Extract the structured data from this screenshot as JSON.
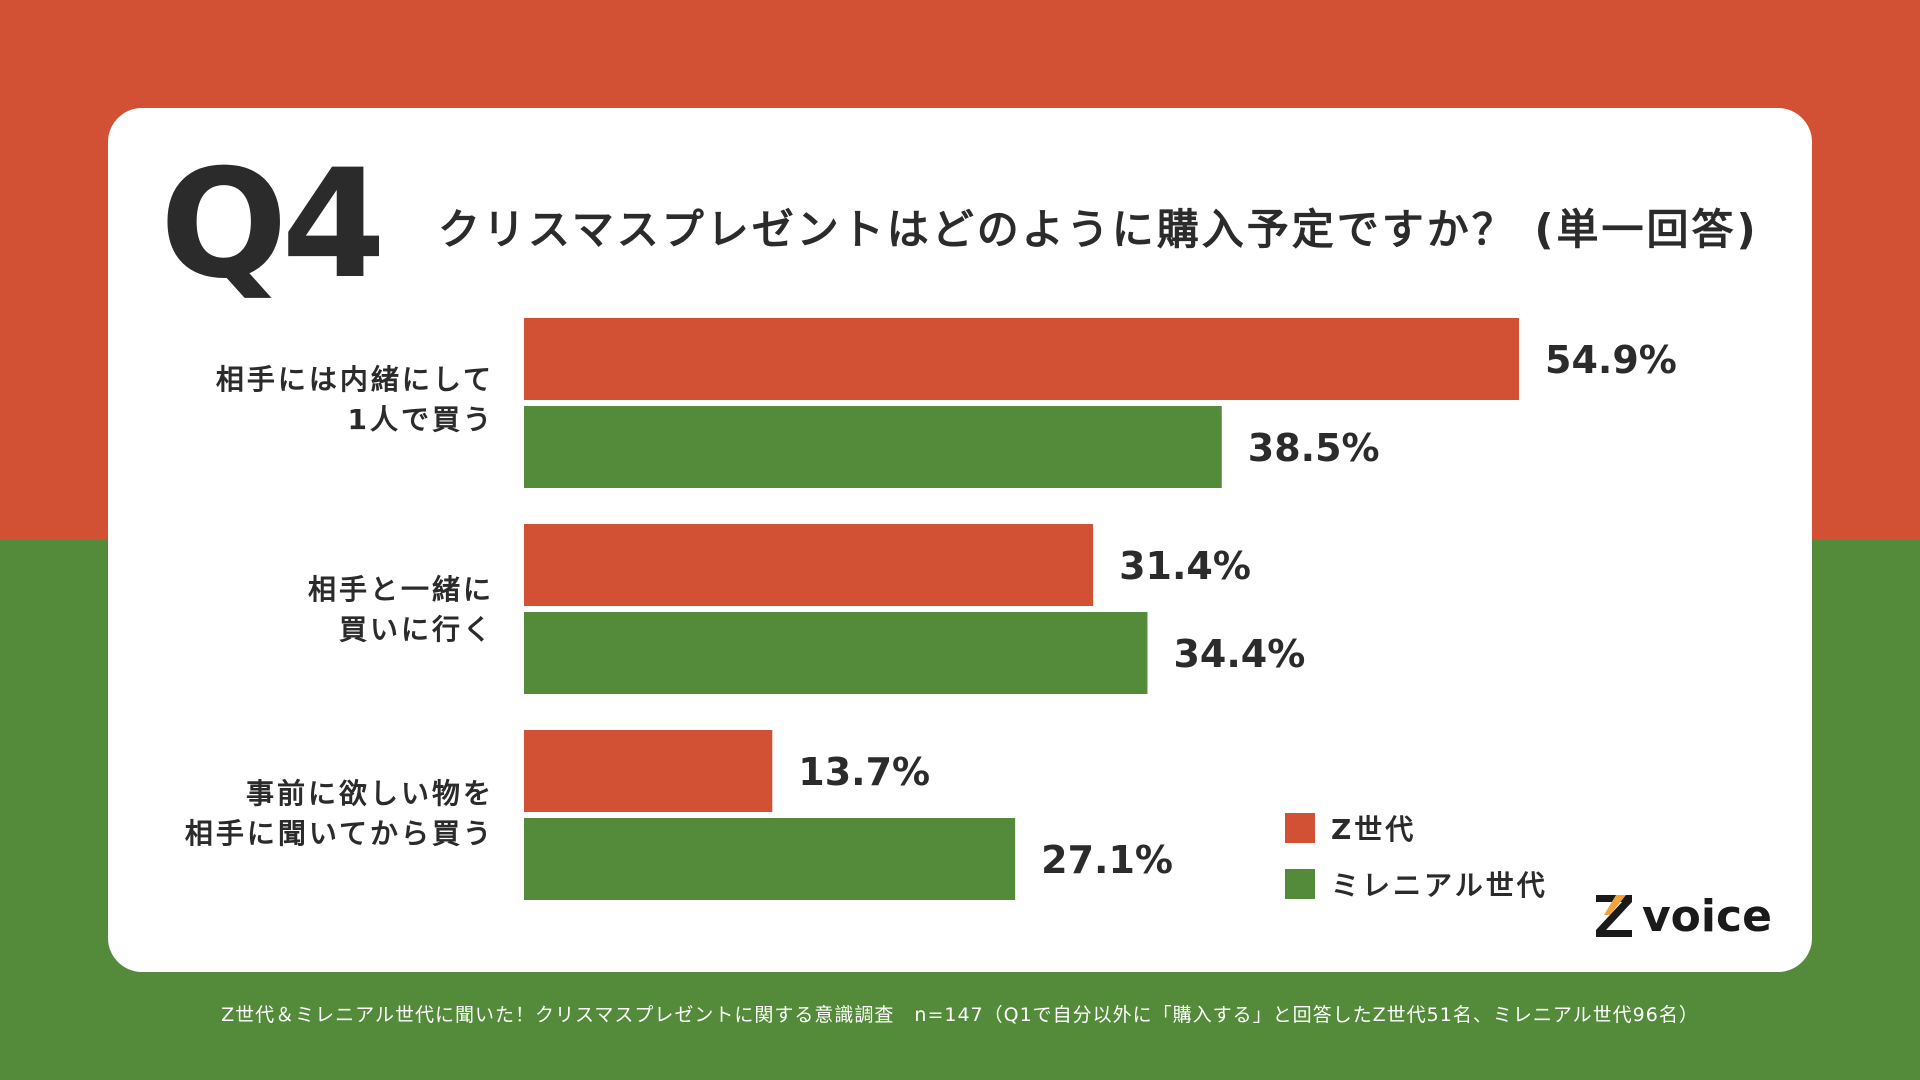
{
  "colors": {
    "gen_z": "#D25034",
    "millennial": "#548B3A",
    "text": "#2b2b2b"
  },
  "header": {
    "badge": "Q4",
    "question": "クリスマスプレゼントはどのように購入予定ですか？ (単一回答)"
  },
  "chart_data": {
    "type": "bar",
    "orientation": "horizontal",
    "categories": [
      "相手には内緒にして\n1人で買う",
      "相手と一緒に\n買いに行く",
      "事前に欲しい物を\n相手に聞いてから買う"
    ],
    "series": [
      {
        "name": "Z世代",
        "values": [
          54.9,
          31.4,
          13.7
        ],
        "labels": [
          "54.9%",
          "31.4%",
          "13.7%"
        ]
      },
      {
        "name": "ミレニアル世代",
        "values": [
          38.5,
          34.4,
          27.1
        ],
        "labels": [
          "38.5%",
          "34.4%",
          "27.1%"
        ]
      }
    ],
    "xlim": [
      0,
      60
    ],
    "unit": "%",
    "legend": "bottom-right"
  },
  "logo": {
    "text": "voice",
    "mark": "Z"
  },
  "footer": {
    "text": "Z世代＆ミレニアル世代に聞いた！クリスマスプレゼントに関する意識調査　n=147（Q1で自分以外に「購入する」と回答したZ世代51名、ミレニアル世代96名）"
  }
}
